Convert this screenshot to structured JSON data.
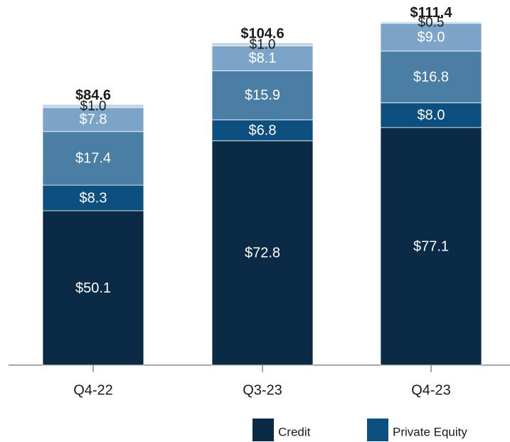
{
  "chart_data": {
    "type": "stacked_bar",
    "categories": [
      "Q4-22",
      "Q3-23",
      "Q4-23"
    ],
    "series": [
      {
        "name": "Credit",
        "color": "#0b2a45",
        "values": [
          50.1,
          72.8,
          77.1
        ],
        "value_labels": [
          "$50.1",
          "$72.8",
          "$77.1"
        ]
      },
      {
        "name": "Private Equity",
        "color": "#0d5080",
        "values": [
          8.3,
          6.8,
          8.0
        ],
        "value_labels": [
          "$8.3",
          "$6.8",
          "$8.0"
        ]
      },
      {
        "color": "#4a7ea4",
        "values": [
          17.4,
          15.9,
          16.8
        ],
        "value_labels": [
          "$17.4",
          "$15.9",
          "$16.8"
        ]
      },
      {
        "color": "#7ca4c9",
        "values": [
          7.8,
          8.1,
          9.0
        ],
        "value_labels": [
          "$7.8",
          "$8.1",
          "$9.0"
        ]
      },
      {
        "color": "#c2d5e7",
        "values": [
          1.0,
          1.0,
          0.5
        ],
        "value_labels": [
          "$1.0",
          "$1.0",
          "$0.5"
        ]
      }
    ],
    "totals": [
      84.6,
      104.6,
      111.4
    ],
    "total_labels": [
      "$84.6",
      "$104.6",
      "$111.4"
    ]
  }
}
